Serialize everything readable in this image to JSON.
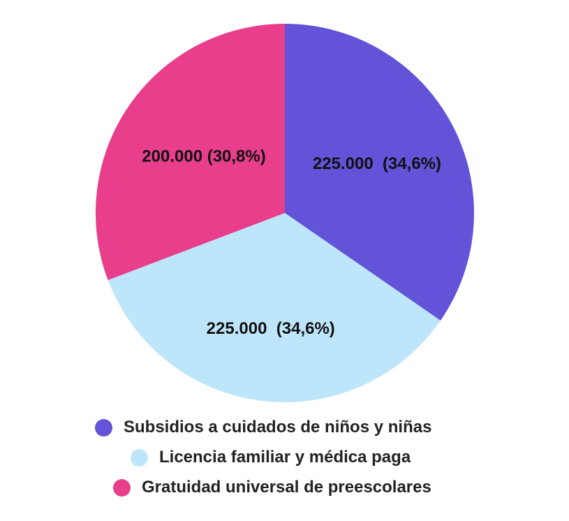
{
  "chart_data": {
    "type": "pie",
    "title": "",
    "categories": [
      "Subsidios a cuidados de niños y niñas",
      "Licencia familiar y médica paga",
      "Gratuidad universal de preescolares"
    ],
    "values": [
      225000,
      225000,
      200000
    ],
    "percentages": [
      34.6,
      34.6,
      30.8
    ],
    "data_labels": [
      "225.000  (34,6%)",
      "225.000  (34,6%)",
      "200.000 (30,8%)"
    ],
    "colors": [
      "#6253d8",
      "#bee6fa",
      "#e83e8c"
    ],
    "start_angle": "12 o'clock",
    "direction": "clockwise",
    "legend_position": "bottom"
  },
  "legend": {
    "items": [
      {
        "label": "Subsidios a cuidados de niños y niñas",
        "color": "#6253d8"
      },
      {
        "label": "Licencia familiar y médica paga",
        "color": "#bee6fa"
      },
      {
        "label": "Gratuidad universal de preescolares",
        "color": "#e83e8c"
      }
    ]
  }
}
